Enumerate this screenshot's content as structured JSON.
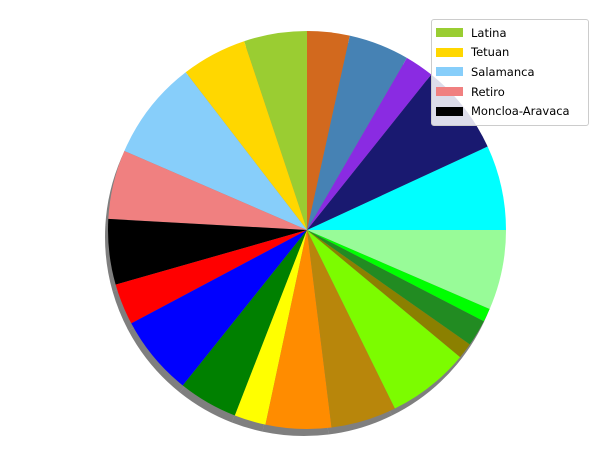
{
  "chart_data": {
    "type": "pie",
    "shadow": true,
    "start_angle_deg": 90,
    "direction": "counterclockwise",
    "legend_placement": "top-right",
    "slices": [
      {
        "label": "Latina",
        "value": 5.2,
        "color": "#9ACD32"
      },
      {
        "label": "Tetuan",
        "value": 5.4,
        "color": "#FFD700"
      },
      {
        "label": "Salamanca",
        "value": 8.2,
        "color": "#87CEFA"
      },
      {
        "label": "Retiro",
        "value": 5.7,
        "color": "#F08080"
      },
      {
        "label": "Moncloa-Aravaca",
        "value": 5.4,
        "color": "#000000"
      },
      {
        "label": "",
        "value": 3.4,
        "color": "#FF0000"
      },
      {
        "label": "",
        "value": 6.6,
        "color": "#0000FF"
      },
      {
        "label": "",
        "value": 4.9,
        "color": "#008000"
      },
      {
        "label": "",
        "value": 2.6,
        "color": "#FFFF00"
      },
      {
        "label": "",
        "value": 5.4,
        "color": "#FF8C00"
      },
      {
        "label": "",
        "value": 5.4,
        "color": "#B8860B"
      },
      {
        "label": "",
        "value": 6.8,
        "color": "#7CFC00"
      },
      {
        "label": "",
        "value": 1.3,
        "color": "#8B8000"
      },
      {
        "label": "",
        "value": 2.2,
        "color": "#228B22"
      },
      {
        "label": "",
        "value": 1.1,
        "color": "#00FF00"
      },
      {
        "label": "",
        "value": 6.6,
        "color": "#98FB98"
      },
      {
        "label": "",
        "value": 7.0,
        "color": "#00FFFF"
      },
      {
        "label": "",
        "value": 7.5,
        "color": "#191970"
      },
      {
        "label": "",
        "value": 2.4,
        "color": "#8A2BE2"
      },
      {
        "label": "",
        "value": 5.0,
        "color": "#4682B4"
      },
      {
        "label": "",
        "value": 3.5,
        "color": "#D2691E"
      }
    ],
    "legend": [
      {
        "label": "Latina",
        "color": "#9ACD32"
      },
      {
        "label": "Tetuan",
        "color": "#FFD700"
      },
      {
        "label": "Salamanca",
        "color": "#87CEFA"
      },
      {
        "label": "Retiro",
        "color": "#F08080"
      },
      {
        "label": "Moncloa-Aravaca",
        "color": "#000000"
      }
    ]
  }
}
